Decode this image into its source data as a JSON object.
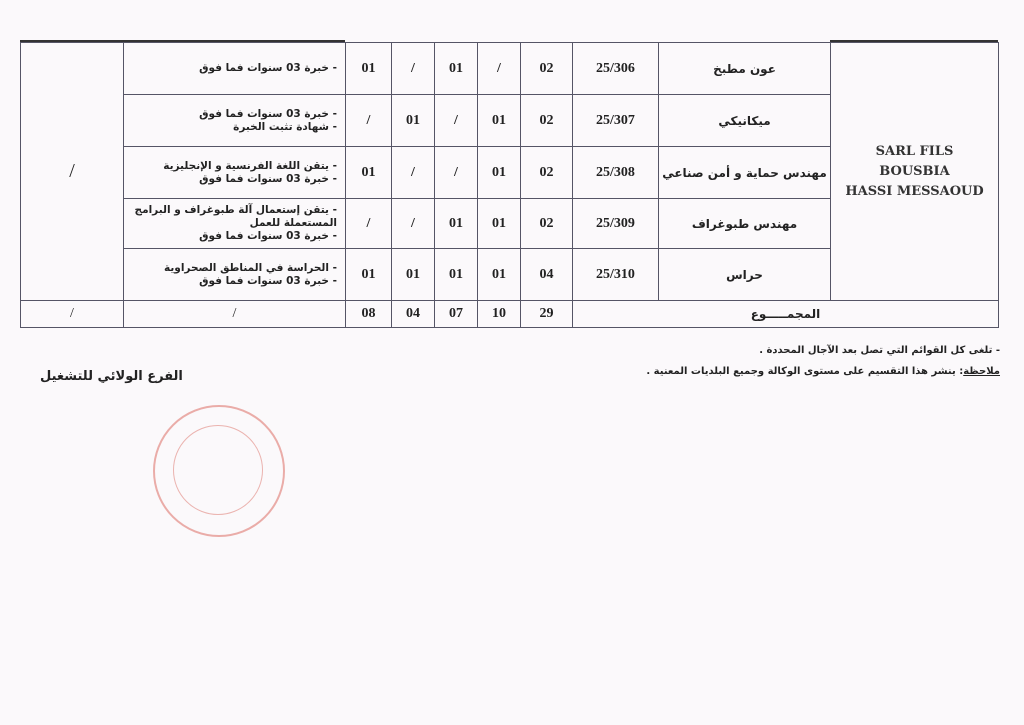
{
  "table": {
    "company": [
      "SARL FILS",
      "BOUSBIA",
      "HASSI MESSAOUD"
    ],
    "side_value": "/",
    "rows": [
      {
        "post": "عون مطبخ",
        "code": "25/306",
        "c1": "02",
        "c2": "/",
        "c3": "01",
        "c4": "/",
        "c5": "01",
        "req": [
          "خبرة 03 سنوات فما فوق"
        ]
      },
      {
        "post": "ميكانيكي",
        "code": "25/307",
        "c1": "02",
        "c2": "01",
        "c3": "/",
        "c4": "01",
        "c5": "/",
        "req": [
          "خبرة 03 سنوات فما فوق",
          "شهادة تثبت الخبرة"
        ]
      },
      {
        "post": "مهندس حماية و أمن صناعي",
        "code": "25/308",
        "c1": "02",
        "c2": "01",
        "c3": "/",
        "c4": "/",
        "c5": "01",
        "req": [
          "يتقن اللغة الفرنسية و الإنجليزية",
          "خبرة 03 سنوات فما فوق"
        ]
      },
      {
        "post": "مهندس طبوغراف",
        "code": "25/309",
        "c1": "02",
        "c2": "01",
        "c3": "01",
        "c4": "/",
        "c5": "/",
        "req": [
          "يتقن إستعمال آلة طبوغراف و البرامج المستعملة للعمل",
          "خبرة 03 سنوات فما فوق"
        ]
      },
      {
        "post": "حراس",
        "code": "25/310",
        "c1": "04",
        "c2": "01",
        "c3": "01",
        "c4": "01",
        "c5": "01",
        "req": [
          "الحراسة في المناطق الصحراوية",
          "خبرة 03 سنوات فما فوق"
        ]
      }
    ],
    "total": {
      "label": "المجمـــــوع",
      "c1": "29",
      "c2": "10",
      "c3": "07",
      "c4": "04",
      "c5": "08",
      "req": "/",
      "side": "/"
    }
  },
  "notes": {
    "line1": "- تلغى كل القوائم التي تصل بعد الآجال المحددة .",
    "label": "ملاحظة",
    "line2": ": ينشر هذا التقسيم على مستوى الوكالة وجميع البلديات المعنية ."
  },
  "signature": "الفرع الولائي للتشغيل",
  "stamp_color": "#dc6e64"
}
